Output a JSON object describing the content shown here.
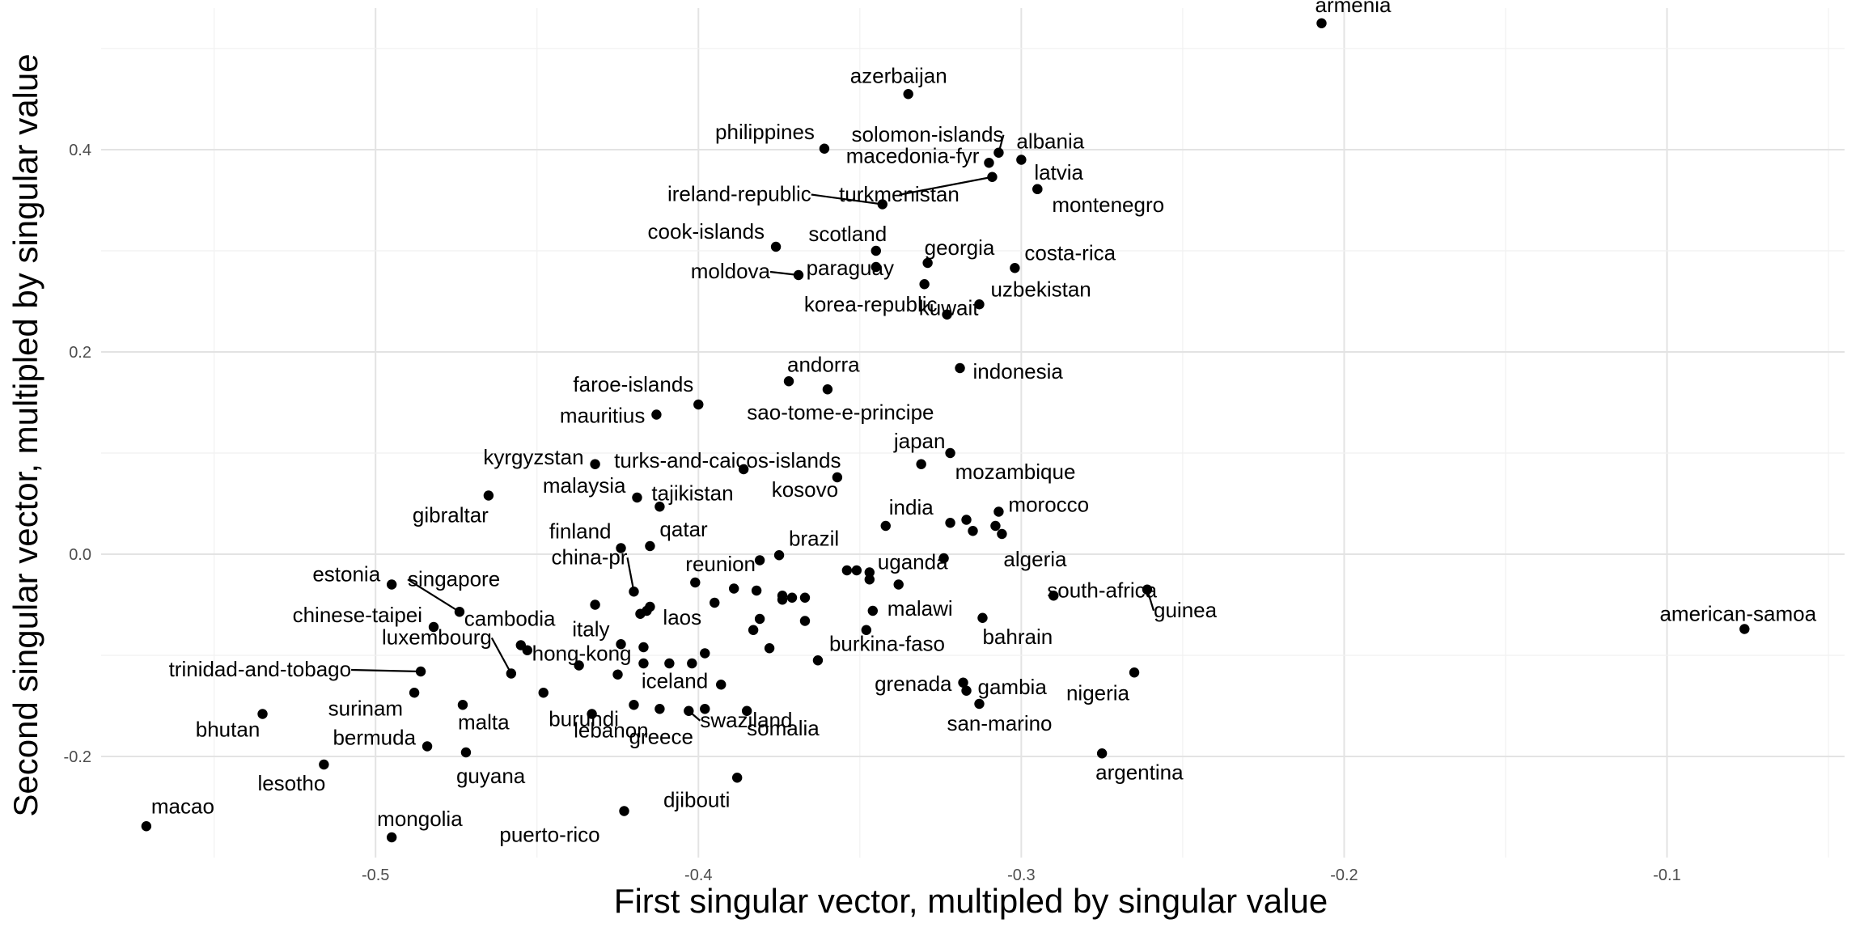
{
  "chart_data": {
    "type": "scatter",
    "title": "",
    "xlabel": "First singular vector, multipled by singular value",
    "ylabel": "Second singular vector, multipled by singular value",
    "xlim": [
      -0.585,
      -0.045
    ],
    "ylim": [
      -0.3,
      0.54
    ],
    "x_ticks": [
      -0.5,
      -0.4,
      -0.3,
      -0.2,
      -0.1
    ],
    "y_ticks": [
      -0.2,
      0.0,
      0.2,
      0.4
    ],
    "grid": true,
    "point_color": "#000000",
    "points": [
      {
        "label": "armenia",
        "x": -0.207,
        "y": 0.525
      },
      {
        "label": "azerbaijan",
        "x": -0.335,
        "y": 0.455
      },
      {
        "label": "philippines",
        "x": -0.361,
        "y": 0.401
      },
      {
        "label": "solomon-islands",
        "x": -0.307,
        "y": 0.397
      },
      {
        "label": "albania",
        "x": -0.3,
        "y": 0.39
      },
      {
        "label": "macedonia-fyr",
        "x": -0.31,
        "y": 0.387
      },
      {
        "label": "latvia",
        "x": -0.295,
        "y": 0.361
      },
      {
        "label": "turkmenistan",
        "x": -0.309,
        "y": 0.373
      },
      {
        "label": "montenegro",
        "x": -0.295,
        "y": 0.361
      },
      {
        "label": "ireland-republic",
        "x": -0.343,
        "y": 0.346
      },
      {
        "label": "cook-islands",
        "x": -0.376,
        "y": 0.304
      },
      {
        "label": "scotland",
        "x": -0.345,
        "y": 0.3
      },
      {
        "label": "georgia",
        "x": -0.329,
        "y": 0.288
      },
      {
        "label": "costa-rica",
        "x": -0.302,
        "y": 0.283
      },
      {
        "label": "moldova",
        "x": -0.369,
        "y": 0.276
      },
      {
        "label": "paraguay",
        "x": -0.345,
        "y": 0.284
      },
      {
        "label": "korea-republic",
        "x": -0.323,
        "y": 0.237
      },
      {
        "label": "uzbekistan",
        "x": -0.313,
        "y": 0.247
      },
      {
        "label": "kuwait",
        "x": -0.33,
        "y": 0.267
      },
      {
        "label": "indonesia",
        "x": -0.319,
        "y": 0.184
      },
      {
        "label": "andorra",
        "x": -0.372,
        "y": 0.171
      },
      {
        "label": "sao-tome-e-principe",
        "x": -0.36,
        "y": 0.163
      },
      {
        "label": "faroe-islands",
        "x": -0.4,
        "y": 0.148
      },
      {
        "label": "mauritius",
        "x": -0.413,
        "y": 0.138
      },
      {
        "label": "kyrgyzstan",
        "x": -0.432,
        "y": 0.089
      },
      {
        "label": "turks-and-caicos-islands",
        "x": -0.386,
        "y": 0.084
      },
      {
        "label": "japan",
        "x": -0.331,
        "y": 0.089
      },
      {
        "label": "mozambique",
        "x": -0.322,
        "y": 0.1
      },
      {
        "label": "malaysia",
        "x": -0.419,
        "y": 0.056
      },
      {
        "label": "tajikistan",
        "x": -0.412,
        "y": 0.047
      },
      {
        "label": "kosovo",
        "x": -0.357,
        "y": 0.076
      },
      {
        "label": "gibraltar",
        "x": -0.465,
        "y": 0.058
      },
      {
        "label": "india",
        "x": -0.342,
        "y": 0.028
      },
      {
        "label": "morocco",
        "x": -0.307,
        "y": 0.042
      },
      {
        "label": "algeria",
        "x": -0.306,
        "y": 0.02
      },
      {
        "label": "finland",
        "x": -0.424,
        "y": 0.006
      },
      {
        "label": "qatar",
        "x": -0.415,
        "y": 0.008
      },
      {
        "label": "brazil",
        "x": -0.375,
        "y": -0.001
      },
      {
        "label": "estonia",
        "x": -0.495,
        "y": -0.03
      },
      {
        "label": "singapore",
        "x": -0.474,
        "y": -0.057
      },
      {
        "label": "china-pr",
        "x": -0.42,
        "y": -0.037
      },
      {
        "label": "reunion",
        "x": -0.401,
        "y": -0.028
      },
      {
        "label": "uganda",
        "x": -0.347,
        "y": -0.018
      },
      {
        "label": "south-africa",
        "x": -0.29,
        "y": -0.041
      },
      {
        "label": "guinea",
        "x": -0.261,
        "y": -0.035
      },
      {
        "label": "american-samoa",
        "x": -0.076,
        "y": -0.074
      },
      {
        "label": "chinese-taipei",
        "x": -0.482,
        "y": -0.072
      },
      {
        "label": "cambodia",
        "x": -0.455,
        "y": -0.09
      },
      {
        "label": "malawi",
        "x": -0.346,
        "y": -0.056
      },
      {
        "label": "bahrain",
        "x": -0.312,
        "y": -0.063
      },
      {
        "label": "italy",
        "x": -0.424,
        "y": -0.089
      },
      {
        "label": "laos",
        "x": -0.415,
        "y": -0.052
      },
      {
        "label": "burkina-faso",
        "x": -0.363,
        "y": -0.105
      },
      {
        "label": "luxembourg",
        "x": -0.458,
        "y": -0.118
      },
      {
        "label": "hong-kong",
        "x": -0.437,
        "y": -0.11
      },
      {
        "label": "trinidad-and-tobago",
        "x": -0.486,
        "y": -0.116
      },
      {
        "label": "nigeria",
        "x": -0.265,
        "y": -0.117
      },
      {
        "label": "burundi",
        "x": -0.433,
        "y": -0.158
      },
      {
        "label": "iceland",
        "x": -0.393,
        "y": -0.129
      },
      {
        "label": "swaziland",
        "x": -0.403,
        "y": -0.155
      },
      {
        "label": "grenada",
        "x": -0.318,
        "y": -0.127
      },
      {
        "label": "gambia",
        "x": -0.317,
        "y": -0.135
      },
      {
        "label": "surinam",
        "x": -0.488,
        "y": -0.137
      },
      {
        "label": "malta",
        "x": -0.473,
        "y": -0.149
      },
      {
        "label": "bhutan",
        "x": -0.535,
        "y": -0.158
      },
      {
        "label": "san-marino",
        "x": -0.313,
        "y": -0.148
      },
      {
        "label": "lebanon",
        "x": -0.412,
        "y": -0.153
      },
      {
        "label": "greece",
        "x": -0.42,
        "y": -0.149
      },
      {
        "label": "somalia",
        "x": -0.385,
        "y": -0.155
      },
      {
        "label": "bermuda",
        "x": -0.484,
        "y": -0.19
      },
      {
        "label": "guyana",
        "x": -0.472,
        "y": -0.196
      },
      {
        "label": "argentina",
        "x": -0.275,
        "y": -0.197
      },
      {
        "label": "lesotho",
        "x": -0.516,
        "y": -0.208
      },
      {
        "label": "djibouti",
        "x": -0.388,
        "y": -0.221
      },
      {
        "label": "puerto-rico",
        "x": -0.423,
        "y": -0.254
      },
      {
        "label": "macao",
        "x": -0.571,
        "y": -0.269
      },
      {
        "label": "mongolia",
        "x": -0.495,
        "y": -0.28
      },
      {
        "label": "",
        "x": -0.381,
        "y": -0.006
      },
      {
        "label": "",
        "x": -0.354,
        "y": -0.016
      },
      {
        "label": "",
        "x": -0.351,
        "y": -0.016
      },
      {
        "label": "",
        "x": -0.347,
        "y": -0.025
      },
      {
        "label": "",
        "x": -0.338,
        "y": -0.03
      },
      {
        "label": "",
        "x": -0.324,
        "y": -0.004
      },
      {
        "label": "",
        "x": -0.322,
        "y": 0.031
      },
      {
        "label": "",
        "x": -0.317,
        "y": 0.034
      },
      {
        "label": "",
        "x": -0.315,
        "y": 0.023
      },
      {
        "label": "",
        "x": -0.308,
        "y": 0.028
      },
      {
        "label": "",
        "x": -0.382,
        "y": -0.036
      },
      {
        "label": "",
        "x": -0.374,
        "y": -0.041
      },
      {
        "label": "",
        "x": -0.374,
        "y": -0.045
      },
      {
        "label": "",
        "x": -0.371,
        "y": -0.043
      },
      {
        "label": "",
        "x": -0.367,
        "y": -0.043
      },
      {
        "label": "",
        "x": -0.367,
        "y": -0.066
      },
      {
        "label": "",
        "x": -0.389,
        "y": -0.034
      },
      {
        "label": "",
        "x": -0.395,
        "y": -0.048
      },
      {
        "label": "",
        "x": -0.381,
        "y": -0.064
      },
      {
        "label": "",
        "x": -0.383,
        "y": -0.075
      },
      {
        "label": "",
        "x": -0.378,
        "y": -0.093
      },
      {
        "label": "",
        "x": -0.348,
        "y": -0.075
      },
      {
        "label": "",
        "x": -0.432,
        "y": -0.05
      },
      {
        "label": "",
        "x": -0.418,
        "y": -0.059
      },
      {
        "label": "",
        "x": -0.416,
        "y": -0.056
      },
      {
        "label": "",
        "x": -0.417,
        "y": -0.092
      },
      {
        "label": "",
        "x": -0.417,
        "y": -0.108
      },
      {
        "label": "",
        "x": -0.409,
        "y": -0.108
      },
      {
        "label": "",
        "x": -0.402,
        "y": -0.108
      },
      {
        "label": "",
        "x": -0.398,
        "y": -0.098
      },
      {
        "label": "",
        "x": -0.453,
        "y": -0.095
      },
      {
        "label": "",
        "x": -0.425,
        "y": -0.119
      },
      {
        "label": "",
        "x": -0.448,
        "y": -0.137
      },
      {
        "label": "",
        "x": -0.398,
        "y": -0.153
      }
    ]
  }
}
